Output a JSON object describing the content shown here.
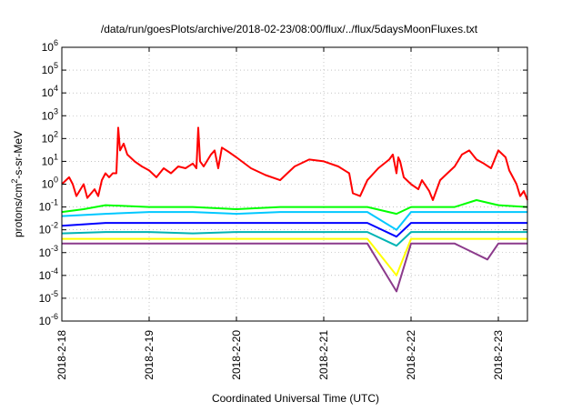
{
  "chart_data": {
    "type": "line",
    "title": "/data/run/goesPlots/archive/2018-02-23/08:00/flux/../flux/5daysMoonFluxes.txt",
    "xlabel": "Coordinated Universal Time (UTC)",
    "ylabel": {
      "prefix": "protons/cm",
      "sup": "2",
      "suffix": "-s-sr-MeV"
    },
    "x_range": [
      "2018-02-18",
      "2018-02-23 08:00"
    ],
    "x_ticks": [
      "2018-2-18",
      "2018-2-19",
      "2018-2-20",
      "2018-2-21",
      "2018-2-22",
      "2018-2-23"
    ],
    "y_scale": "log",
    "y_range": [
      1e-06,
      1000000.0
    ],
    "y_ticks": [
      {
        "base": "10",
        "exp": "-6"
      },
      {
        "base": "10",
        "exp": "-5"
      },
      {
        "base": "10",
        "exp": "-4"
      },
      {
        "base": "10",
        "exp": "-3"
      },
      {
        "base": "10",
        "exp": "-2"
      },
      {
        "base": "10",
        "exp": "-1"
      },
      {
        "base": "10",
        "exp": "0"
      },
      {
        "base": "10",
        "exp": "1"
      },
      {
        "base": "10",
        "exp": "2"
      },
      {
        "base": "10",
        "exp": "3"
      },
      {
        "base": "10",
        "exp": "4"
      },
      {
        "base": "10",
        "exp": "5"
      },
      {
        "base": "10",
        "exp": "6"
      }
    ],
    "grid": true,
    "series": [
      {
        "color": "#ff0000",
        "points": [
          [
            "2018-02-18 00:00",
            1.0
          ],
          [
            "2018-02-18 02:00",
            2.0
          ],
          [
            "2018-02-18 03:00",
            1.0
          ],
          [
            "2018-02-18 04:00",
            0.3
          ],
          [
            "2018-02-18 06:00",
            1.0
          ],
          [
            "2018-02-18 07:00",
            0.25
          ],
          [
            "2018-02-18 09:00",
            0.6
          ],
          [
            "2018-02-18 10:00",
            0.3
          ],
          [
            "2018-02-18 11:00",
            1.5
          ],
          [
            "2018-02-18 12:00",
            3.0
          ],
          [
            "2018-02-18 13:00",
            2.0
          ],
          [
            "2018-02-18 14:00",
            3.0
          ],
          [
            "2018-02-18 15:00",
            3.0
          ],
          [
            "2018-02-18 15:30",
            300
          ],
          [
            "2018-02-18 16:00",
            30
          ],
          [
            "2018-02-18 17:00",
            60
          ],
          [
            "2018-02-18 18:00",
            20
          ],
          [
            "2018-02-18 20:00",
            10
          ],
          [
            "2018-02-18 22:00",
            6
          ],
          [
            "2018-02-19 00:00",
            4
          ],
          [
            "2018-02-19 02:00",
            2
          ],
          [
            "2018-02-19 04:00",
            5
          ],
          [
            "2018-02-19 06:00",
            3
          ],
          [
            "2018-02-19 08:00",
            6
          ],
          [
            "2018-02-19 10:00",
            5
          ],
          [
            "2018-02-19 12:00",
            8
          ],
          [
            "2018-02-19 13:00",
            5
          ],
          [
            "2018-02-19 13:30",
            300
          ],
          [
            "2018-02-19 14:00",
            10
          ],
          [
            "2018-02-19 15:00",
            6
          ],
          [
            "2018-02-19 17:00",
            20
          ],
          [
            "2018-02-19 18:00",
            30
          ],
          [
            "2018-02-19 19:00",
            5
          ],
          [
            "2018-02-19 20:00",
            40
          ],
          [
            "2018-02-19 22:00",
            25
          ],
          [
            "2018-02-20 00:00",
            15
          ],
          [
            "2018-02-20 04:00",
            5
          ],
          [
            "2018-02-20 08:00",
            2.5
          ],
          [
            "2018-02-20 12:00",
            1.5
          ],
          [
            "2018-02-20 14:00",
            3
          ],
          [
            "2018-02-20 16:00",
            6
          ],
          [
            "2018-02-20 20:00",
            12
          ],
          [
            "2018-02-21 00:00",
            10
          ],
          [
            "2018-02-21 04:00",
            6
          ],
          [
            "2018-02-21 07:00",
            3
          ],
          [
            "2018-02-21 08:00",
            0.4
          ],
          [
            "2018-02-21 10:00",
            0.3
          ],
          [
            "2018-02-21 12:00",
            1.5
          ],
          [
            "2018-02-21 15:00",
            5
          ],
          [
            "2018-02-21 18:00",
            12
          ],
          [
            "2018-02-21 19:00",
            20
          ],
          [
            "2018-02-21 20:00",
            3
          ],
          [
            "2018-02-21 20:30",
            15
          ],
          [
            "2018-02-21 21:00",
            10
          ],
          [
            "2018-02-21 22:00",
            2
          ],
          [
            "2018-02-22 00:00",
            1.0
          ],
          [
            "2018-02-22 02:00",
            0.6
          ],
          [
            "2018-02-22 03:00",
            1.5
          ],
          [
            "2018-02-22 05:00",
            0.5
          ],
          [
            "2018-02-22 06:00",
            0.2
          ],
          [
            "2018-02-22 08:00",
            1.5
          ],
          [
            "2018-02-22 10:00",
            3
          ],
          [
            "2018-02-22 12:00",
            6
          ],
          [
            "2018-02-22 14:00",
            20
          ],
          [
            "2018-02-22 16:00",
            30
          ],
          [
            "2018-02-22 18:00",
            12
          ],
          [
            "2018-02-22 20:00",
            8
          ],
          [
            "2018-02-22 22:00",
            5
          ],
          [
            "2018-02-23 00:00",
            30
          ],
          [
            "2018-02-23 02:00",
            15
          ],
          [
            "2018-02-23 03:00",
            4
          ],
          [
            "2018-02-23 04:00",
            2
          ],
          [
            "2018-02-23 05:00",
            1.0
          ],
          [
            "2018-02-23 06:00",
            0.3
          ],
          [
            "2018-02-23 07:00",
            0.5
          ],
          [
            "2018-02-23 08:00",
            0.2
          ]
        ]
      },
      {
        "color": "#00ff00",
        "points": [
          [
            "2018-02-18 00:00",
            0.06
          ],
          [
            "2018-02-18 06:00",
            0.08
          ],
          [
            "2018-02-18 12:00",
            0.12
          ],
          [
            "2018-02-19 00:00",
            0.1
          ],
          [
            "2018-02-19 12:00",
            0.1
          ],
          [
            "2018-02-20 00:00",
            0.08
          ],
          [
            "2018-02-20 12:00",
            0.1
          ],
          [
            "2018-02-21 00:00",
            0.1
          ],
          [
            "2018-02-21 12:00",
            0.1
          ],
          [
            "2018-02-21 20:00",
            0.05
          ],
          [
            "2018-02-22 00:00",
            0.1
          ],
          [
            "2018-02-22 12:00",
            0.1
          ],
          [
            "2018-02-22 18:00",
            0.2
          ],
          [
            "2018-02-23 00:00",
            0.12
          ],
          [
            "2018-02-23 08:00",
            0.1
          ]
        ]
      },
      {
        "color": "#00c8ff",
        "points": [
          [
            "2018-02-18 00:00",
            0.04
          ],
          [
            "2018-02-18 12:00",
            0.05
          ],
          [
            "2018-02-19 00:00",
            0.06
          ],
          [
            "2018-02-19 12:00",
            0.06
          ],
          [
            "2018-02-20 00:00",
            0.05
          ],
          [
            "2018-02-20 12:00",
            0.06
          ],
          [
            "2018-02-21 00:00",
            0.06
          ],
          [
            "2018-02-21 12:00",
            0.06
          ],
          [
            "2018-02-21 20:00",
            0.01
          ],
          [
            "2018-02-22 00:00",
            0.06
          ],
          [
            "2018-02-22 12:00",
            0.06
          ],
          [
            "2018-02-23 00:00",
            0.06
          ],
          [
            "2018-02-23 08:00",
            0.06
          ]
        ]
      },
      {
        "color": "#0000ff",
        "points": [
          [
            "2018-02-18 00:00",
            0.015
          ],
          [
            "2018-02-18 12:00",
            0.02
          ],
          [
            "2018-02-19 00:00",
            0.02
          ],
          [
            "2018-02-19 12:00",
            0.02
          ],
          [
            "2018-02-20 00:00",
            0.02
          ],
          [
            "2018-02-20 12:00",
            0.02
          ],
          [
            "2018-02-21 00:00",
            0.02
          ],
          [
            "2018-02-21 12:00",
            0.02
          ],
          [
            "2018-02-21 20:00",
            0.005
          ],
          [
            "2018-02-22 00:00",
            0.02
          ],
          [
            "2018-02-22 12:00",
            0.02
          ],
          [
            "2018-02-23 00:00",
            0.02
          ],
          [
            "2018-02-23 08:00",
            0.02
          ]
        ]
      },
      {
        "color": "#00b4b4",
        "points": [
          [
            "2018-02-18 00:00",
            0.007
          ],
          [
            "2018-02-18 12:00",
            0.008
          ],
          [
            "2018-02-19 00:00",
            0.008
          ],
          [
            "2018-02-19 12:00",
            0.007
          ],
          [
            "2018-02-20 00:00",
            0.008
          ],
          [
            "2018-02-20 12:00",
            0.008
          ],
          [
            "2018-02-21 00:00",
            0.008
          ],
          [
            "2018-02-21 12:00",
            0.008
          ],
          [
            "2018-02-21 20:00",
            0.002
          ],
          [
            "2018-02-22 00:00",
            0.008
          ],
          [
            "2018-02-22 12:00",
            0.008
          ],
          [
            "2018-02-23 00:00",
            0.008
          ],
          [
            "2018-02-23 08:00",
            0.008
          ]
        ]
      },
      {
        "color": "#ffff00",
        "points": [
          [
            "2018-02-18 00:00",
            0.004
          ],
          [
            "2018-02-18 12:00",
            0.004
          ],
          [
            "2018-02-19 00:00",
            0.004
          ],
          [
            "2018-02-19 12:00",
            0.004
          ],
          [
            "2018-02-20 00:00",
            0.004
          ],
          [
            "2018-02-20 12:00",
            0.004
          ],
          [
            "2018-02-21 00:00",
            0.004
          ],
          [
            "2018-02-21 12:00",
            0.004
          ],
          [
            "2018-02-21 20:00",
            0.0001
          ],
          [
            "2018-02-22 00:00",
            0.004
          ],
          [
            "2018-02-22 12:00",
            0.004
          ],
          [
            "2018-02-23 00:00",
            0.004
          ],
          [
            "2018-02-23 08:00",
            0.004
          ]
        ]
      },
      {
        "color": "#8b3a8b",
        "points": [
          [
            "2018-02-18 00:00",
            0.0025
          ],
          [
            "2018-02-18 12:00",
            0.0025
          ],
          [
            "2018-02-19 00:00",
            0.0025
          ],
          [
            "2018-02-19 12:00",
            0.0025
          ],
          [
            "2018-02-20 00:00",
            0.0025
          ],
          [
            "2018-02-20 12:00",
            0.0025
          ],
          [
            "2018-02-21 00:00",
            0.0025
          ],
          [
            "2018-02-21 12:00",
            0.0025
          ],
          [
            "2018-02-21 20:00",
            2e-05
          ],
          [
            "2018-02-22 00:00",
            0.0025
          ],
          [
            "2018-02-22 12:00",
            0.0025
          ],
          [
            "2018-02-22 21:00",
            0.0005
          ],
          [
            "2018-02-23 00:00",
            0.0025
          ],
          [
            "2018-02-23 08:00",
            0.0025
          ]
        ]
      }
    ]
  }
}
